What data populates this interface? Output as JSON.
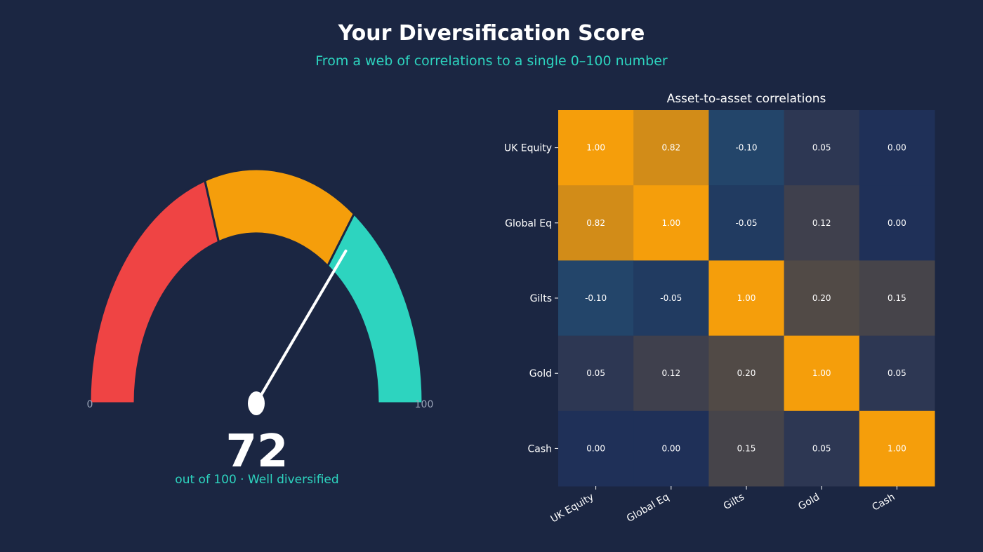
{
  "header": {
    "title": "Your Diversification Score",
    "subtitle": "From a web of correlations to a single 0–100 number"
  },
  "gauge": {
    "min_label": "0",
    "max_label": "100",
    "score": 72,
    "score_text": "72",
    "caption": "out of 100  ·  Well diversified",
    "bands": [
      {
        "from": 0,
        "to": 40,
        "color": "#ef4444"
      },
      {
        "from": 40,
        "to": 70,
        "color": "#f59e0b"
      },
      {
        "from": 70,
        "to": 100,
        "color": "#2dd4bf"
      }
    ]
  },
  "chart_data": {
    "type": "heatmap",
    "title": "Asset-to-asset correlations",
    "rows": [
      "UK Equity",
      "Global Eq",
      "Gilts",
      "Gold",
      "Cash"
    ],
    "cols": [
      "UK Equity",
      "Global Eq",
      "Gilts",
      "Gold",
      "Cash"
    ],
    "values": [
      [
        1.0,
        0.82,
        -0.1,
        0.05,
        0.0
      ],
      [
        0.82,
        1.0,
        -0.05,
        0.12,
        0.0
      ],
      [
        -0.1,
        -0.05,
        1.0,
        0.2,
        0.15
      ],
      [
        0.05,
        0.12,
        0.2,
        1.0,
        0.05
      ],
      [
        0.0,
        0.0,
        0.15,
        0.05,
        1.0
      ]
    ],
    "labels": [
      [
        "1.00",
        "0.82",
        "-0.10",
        "0.05",
        "0.00"
      ],
      [
        "0.82",
        "1.00",
        "-0.05",
        "0.12",
        "0.00"
      ],
      [
        "-0.10",
        "-0.05",
        "1.00",
        "0.20",
        "0.15"
      ],
      [
        "0.05",
        "0.12",
        "0.20",
        "1.00",
        "0.05"
      ],
      [
        "0.00",
        "0.00",
        "0.15",
        "0.05",
        "1.00"
      ]
    ],
    "colors": {
      "high": "#f59e0b",
      "neutral": "#1f3058",
      "negative": "#23456a"
    }
  }
}
